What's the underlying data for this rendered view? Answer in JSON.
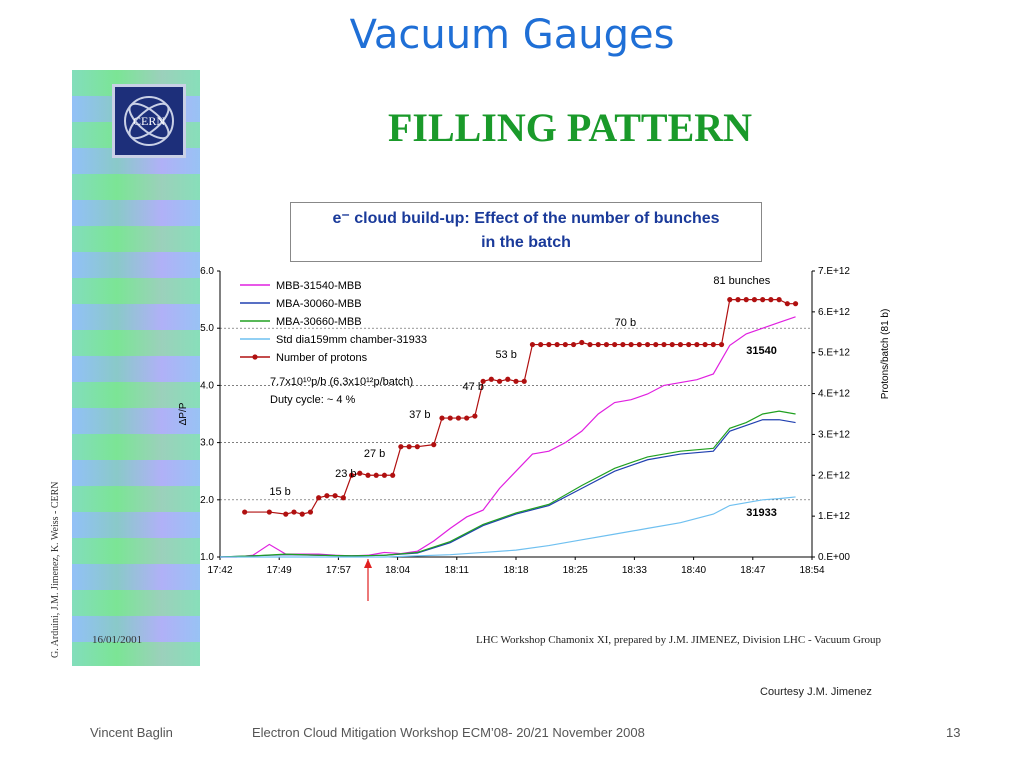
{
  "slide": {
    "title": "Vacuum Gauges",
    "courtesy": "Courtesy J.M. Jimenez",
    "footer_left": "Vincent Baglin",
    "footer_center": "Electron Cloud Mitigation Workshop ECM’08- 20/21 November 2008",
    "footer_right": "13"
  },
  "embedded": {
    "logo_text": "CERN",
    "filling_title": "FILLING PATTERN",
    "box_title_line1": "e⁻ cloud build-up: Effect of the number of bunches",
    "box_title_line2": "in the batch",
    "vertical_credit": "G. Arduini, J.M. Jimenez, K. Weiss - CERN",
    "date": "16/01/2001",
    "workshop_note": "LHC Workshop Chamonix XI, prepared by J.M. JIMENEZ, Division LHC - Vacuum Group"
  },
  "chart_data": {
    "type": "line",
    "ylabel": "ΔP/P",
    "y2label": "Protons/batch (81 b)",
    "x_ticks": [
      "17:42",
      "17:49",
      "17:57",
      "18:04",
      "18:11",
      "18:18",
      "18:25",
      "18:33",
      "18:40",
      "18:47",
      "18:54"
    ],
    "ylim": [
      1.0,
      6.0
    ],
    "y_ticks": [
      "1.0",
      "2.0",
      "3.0",
      "4.0",
      "5.0",
      "6.0"
    ],
    "y2lim": [
      0,
      7000000000000.0
    ],
    "y2_ticks": [
      "0.E+00",
      "1.E+12",
      "2.E+12",
      "3.E+12",
      "4.E+12",
      "5.E+12",
      "6.E+12",
      "7.E+12"
    ],
    "annotation_lines": [
      "7.7x10¹⁰p/b (6.3x10¹²p/batch)",
      "Duty cycle: ~ 4 %"
    ],
    "labels": {
      "bunches_15": "15 b",
      "bunches_23": "23 b",
      "bunches_27": "27 b",
      "bunches_37": "37 b",
      "bunches_47": "47 b",
      "bunches_53": "53 b",
      "bunches_70": "70 b",
      "bunches_81": "81 bunches",
      "gauge_31540": "31540",
      "gauge_31933": "31933"
    },
    "series": [
      {
        "name": "MBB-31540-MBB",
        "color": "#e020e0",
        "x": [
          0,
          2,
          4,
          6,
          8,
          10,
          12,
          14,
          16,
          18,
          20,
          22,
          24,
          26,
          28,
          30,
          32,
          34,
          36,
          38,
          40,
          42,
          44,
          46,
          48,
          50,
          52,
          54,
          56,
          58,
          60,
          62,
          64,
          66,
          68,
          70
        ],
        "y": [
          1.0,
          1.0,
          1.03,
          1.22,
          1.05,
          1.05,
          1.05,
          1.03,
          1.02,
          1.03,
          1.08,
          1.06,
          1.1,
          1.28,
          1.5,
          1.7,
          1.82,
          2.2,
          2.5,
          2.8,
          2.85,
          3.0,
          3.2,
          3.5,
          3.7,
          3.75,
          3.85,
          4.0,
          4.05,
          4.1,
          4.2,
          4.7,
          4.9,
          5.0,
          5.1,
          5.2
        ]
      },
      {
        "name": "MBA-30060-MBB",
        "color": "#2040b0",
        "x": [
          0,
          4,
          8,
          12,
          16,
          20,
          24,
          28,
          32,
          36,
          40,
          44,
          48,
          52,
          56,
          60,
          62,
          64,
          66,
          68,
          70
        ],
        "y": [
          1.0,
          1.02,
          1.04,
          1.03,
          1.02,
          1.03,
          1.07,
          1.25,
          1.55,
          1.75,
          1.9,
          2.2,
          2.5,
          2.7,
          2.8,
          2.85,
          3.2,
          3.3,
          3.4,
          3.4,
          3.35
        ]
      },
      {
        "name": "MBA-30660-MBB",
        "color": "#20a020",
        "x": [
          0,
          4,
          8,
          12,
          16,
          20,
          24,
          28,
          32,
          36,
          40,
          44,
          48,
          52,
          56,
          60,
          62,
          64,
          66,
          68,
          70
        ],
        "y": [
          1.0,
          1.02,
          1.05,
          1.03,
          1.02,
          1.03,
          1.08,
          1.27,
          1.57,
          1.77,
          1.92,
          2.25,
          2.55,
          2.75,
          2.85,
          2.9,
          3.25,
          3.35,
          3.5,
          3.55,
          3.5
        ]
      },
      {
        "name": "Std dia159mm chamber-31933",
        "color": "#6fc0f0",
        "x": [
          0,
          10,
          20,
          24,
          28,
          32,
          36,
          40,
          44,
          48,
          52,
          56,
          60,
          62,
          64,
          66,
          68,
          70
        ],
        "y": [
          1.0,
          1.0,
          1.0,
          1.02,
          1.04,
          1.08,
          1.12,
          1.2,
          1.3,
          1.4,
          1.5,
          1.6,
          1.75,
          1.9,
          1.95,
          2.0,
          2.02,
          2.05
        ]
      },
      {
        "name": "Number of protons",
        "color": "#b01010",
        "y_axis": "right",
        "x": [
          3,
          6,
          8,
          9,
          10,
          11,
          12,
          13,
          14,
          15,
          16,
          17,
          18,
          19,
          20,
          21,
          22,
          23,
          24,
          26,
          27,
          28,
          29,
          30,
          31,
          32,
          33,
          34,
          35,
          36,
          37,
          38,
          39,
          40,
          41,
          42,
          43,
          44,
          45,
          46,
          47,
          48,
          49,
          50,
          51,
          52,
          53,
          54,
          55,
          56,
          57,
          58,
          59,
          60,
          61,
          62,
          63,
          64,
          65,
          66,
          67,
          68,
          69,
          70
        ],
        "y": [
          1100000000000.0,
          1100000000000.0,
          1050000000000.0,
          1100000000000.0,
          1050000000000.0,
          1100000000000.0,
          1450000000000.0,
          1500000000000.0,
          1500000000000.0,
          1450000000000.0,
          2000000000000.0,
          2050000000000.0,
          2000000000000.0,
          2000000000000.0,
          2000000000000.0,
          2000000000000.0,
          2700000000000.0,
          2700000000000.0,
          2700000000000.0,
          2750000000000.0,
          3400000000000.0,
          3400000000000.0,
          3400000000000.0,
          3400000000000.0,
          3450000000000.0,
          4300000000000.0,
          4350000000000.0,
          4300000000000.0,
          4350000000000.0,
          4300000000000.0,
          4300000000000.0,
          5200000000000.0,
          5200000000000.0,
          5200000000000.0,
          5200000000000.0,
          5200000000000.0,
          5200000000000.0,
          5250000000000.0,
          5200000000000.0,
          5200000000000.0,
          5200000000000.0,
          5200000000000.0,
          5200000000000.0,
          5200000000000.0,
          5200000000000.0,
          5200000000000.0,
          5200000000000.0,
          5200000000000.0,
          5200000000000.0,
          5200000000000.0,
          5200000000000.0,
          5200000000000.0,
          5200000000000.0,
          5200000000000.0,
          5200000000000.0,
          6300000000000.0,
          6300000000000.0,
          6300000000000.0,
          6300000000000.0,
          6300000000000.0,
          6300000000000.0,
          6300000000000.0,
          6200000000000.0,
          6200000000000.0
        ]
      }
    ]
  }
}
